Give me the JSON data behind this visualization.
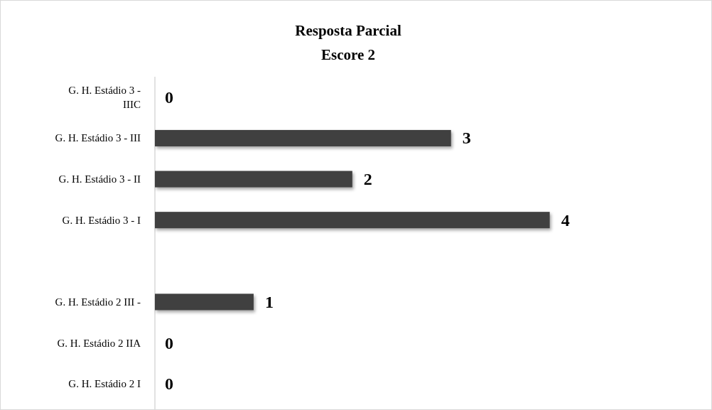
{
  "chart_data": {
    "type": "bar",
    "orientation": "horizontal",
    "title": "Resposta Parcial",
    "subtitle": "Escore 2",
    "categories": [
      "G. H. Estádio 3 - IIIC",
      "G. H. Estádio 3 - III",
      "G. H. Estádio 3 - II",
      "G. H. Estádio 3 - I",
      null,
      "G. H. Estádio 2 III -",
      "G. H. Estádio 2 IIA",
      "G. H. Estádio 2 I"
    ],
    "values": [
      0,
      3,
      2,
      4,
      null,
      1,
      0,
      0
    ],
    "color": "#404040",
    "data_labels": true,
    "tick_labels": "y"
  }
}
